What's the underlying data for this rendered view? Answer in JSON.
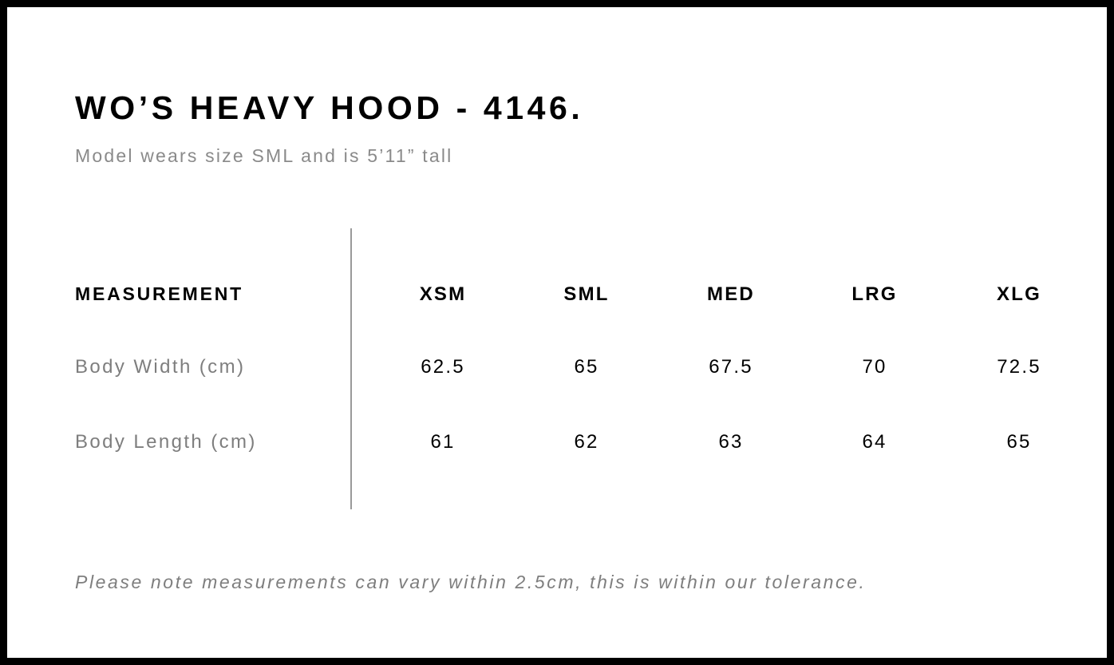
{
  "title": "WO’S HEAVY HOOD - 4146.",
  "subtitle": "Model wears size SML and is 5’11” tall",
  "table": {
    "header": "MEASUREMENT",
    "sizes": [
      "XSM",
      "SML",
      "MED",
      "LRG",
      "XLG"
    ],
    "rows": [
      {
        "label": "Body Width (cm)",
        "values": [
          "62.5",
          "65",
          "67.5",
          "70",
          "72.5"
        ]
      },
      {
        "label": "Body Length (cm)",
        "values": [
          "61",
          "62",
          "63",
          "64",
          "65"
        ]
      }
    ]
  },
  "note": "Please note measurements can vary within 2.5cm, this is within our tolerance."
}
